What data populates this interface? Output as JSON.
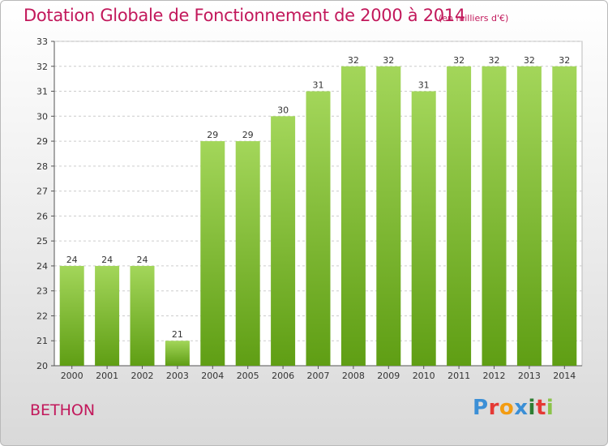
{
  "chart_data": {
    "type": "bar",
    "title": "Dotation Globale de Fonctionnement de 2000 à 2014",
    "subtitle": "(en milliers d'€)",
    "categories": [
      "2000",
      "2001",
      "2002",
      "2003",
      "2004",
      "2005",
      "2006",
      "2007",
      "2008",
      "2009",
      "2010",
      "2011",
      "2012",
      "2013",
      "2014"
    ],
    "values": [
      24,
      24,
      24,
      21,
      29,
      29,
      30,
      31,
      32,
      32,
      31,
      32,
      32,
      32,
      32
    ],
    "xlabel": "",
    "ylabel": "",
    "ylim": [
      20,
      33
    ],
    "yticks": [
      "20",
      "21",
      "22",
      "23",
      "24",
      "25",
      "26",
      "27",
      "28",
      "29",
      "30",
      "31",
      "32",
      "33"
    ],
    "grid": "dashed horizontal",
    "data_labels": true,
    "bar_color": "#7fbf2a"
  },
  "footer": {
    "commune": "BETHON",
    "logo": "Proxiti",
    "logo_colors": [
      "#3b8fd6",
      "#e53935",
      "#f39c12",
      "#3b8fd6",
      "#2e7d32",
      "#e53935",
      "#8bc34a"
    ]
  },
  "colors": {
    "title": "#c2185b",
    "grid": "#cccccc",
    "axis": "#555555"
  }
}
